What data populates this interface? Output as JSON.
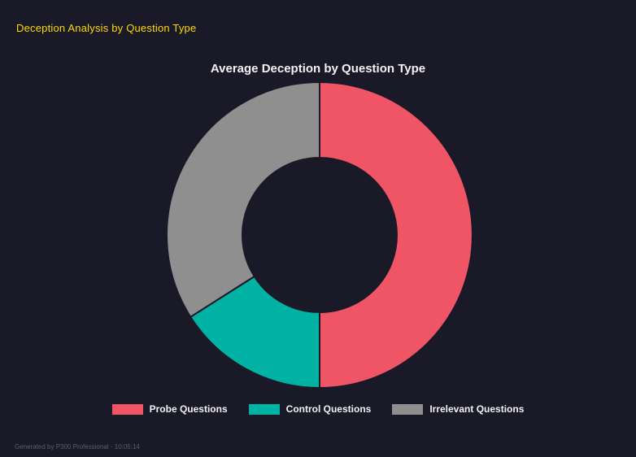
{
  "page": {
    "title": "Deception Analysis by Question Type",
    "footer": "Generated by P300 Professional - 10:05:14"
  },
  "colors": {
    "background": "#191928",
    "heading": "#ffd900",
    "chart_title": "#f2f2f5",
    "legend_text": "#f2f2f5",
    "footer_text": "#5c5c6e"
  },
  "chart_data": {
    "type": "pie",
    "subtype": "donut",
    "title": "Average Deception by Question Type",
    "categories": [
      "Probe Questions",
      "Control Questions",
      "Irrelevant Questions"
    ],
    "values": [
      50,
      16,
      34
    ],
    "unit": "percent-of-total",
    "colors": [
      "#ef5564",
      "#00b2a4",
      "#8f8f8f"
    ],
    "legend_position": "bottom",
    "start_angle_deg": 0,
    "direction": "clockwise",
    "inner_radius_ratio": 0.5
  }
}
